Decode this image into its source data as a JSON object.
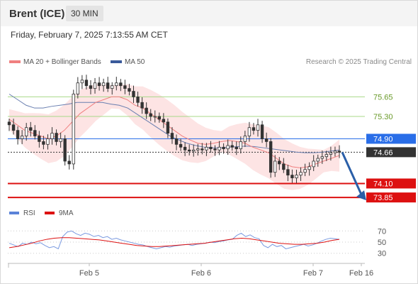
{
  "header": {
    "instrument": "Brent (ICE)",
    "timeframe": "30 MIN",
    "timestamp": "Friday, February 7, 2025 7:13:55 AM CET"
  },
  "chart_data": [
    {
      "type": "candlestick",
      "legend": [
        {
          "label": "MA 20 + Bollinger Bands",
          "color": "#f08080"
        },
        {
          "label": "MA 50",
          "color": "#3a5a9a"
        }
      ],
      "credit": "Research © 2025 Trading Central",
      "y_range": [
        73.75,
        76.1
      ],
      "levels": [
        {
          "label": "75.65",
          "value": 75.65,
          "color": "#a8d888",
          "style": "green"
        },
        {
          "label": "75.30",
          "value": 75.3,
          "color": "#a8d888",
          "style": "green"
        },
        {
          "label": "74.90",
          "value": 74.9,
          "color": "#2a6ee8",
          "style": "blue"
        },
        {
          "label": "74.66",
          "value": 74.66,
          "color": "#333333",
          "style": "dark"
        },
        {
          "label": "74.10",
          "value": 74.1,
          "color": "#dd1111",
          "style": "red"
        },
        {
          "label": "73.85",
          "value": 73.85,
          "color": "#dd1111",
          "style": "red"
        }
      ],
      "close_series": [
        75.15,
        75.05,
        74.9,
        74.95,
        75.1,
        75.05,
        74.95,
        74.85,
        74.8,
        74.9,
        75.0,
        74.85,
        74.9,
        74.5,
        74.45,
        75.7,
        75.9,
        75.95,
        75.85,
        75.8,
        75.9,
        75.85,
        75.9,
        75.8,
        75.85,
        75.9,
        75.85,
        75.8,
        75.75,
        75.65,
        75.55,
        75.45,
        75.35,
        75.3,
        75.3,
        75.25,
        75.2,
        75.0,
        74.9,
        74.8,
        74.75,
        74.7,
        74.68,
        74.7,
        74.72,
        74.7,
        74.75,
        74.72,
        74.7,
        74.75,
        74.72,
        74.78,
        74.75,
        74.72,
        74.85,
        74.95,
        75.1,
        75.05,
        75.15,
        74.9,
        74.85,
        74.3,
        74.5,
        74.45,
        74.35,
        74.25,
        74.2,
        74.25,
        74.3,
        74.35,
        74.4,
        74.5,
        74.55,
        74.58,
        74.62,
        74.65,
        74.68,
        74.66
      ],
      "ma20_series": [
        75.25,
        75.15,
        75.05,
        75.0,
        74.95,
        74.9,
        74.95,
        75.05,
        75.2,
        75.35,
        75.45,
        75.55,
        75.6,
        75.65,
        75.65,
        75.6,
        75.5,
        75.45,
        75.35,
        75.25,
        75.15,
        75.05,
        74.95,
        74.88,
        74.82,
        74.8,
        74.82,
        74.85,
        74.87,
        74.85,
        74.82,
        74.75,
        74.7,
        74.65,
        74.55,
        74.45,
        74.4,
        74.38,
        74.4,
        74.45,
        74.5,
        74.55,
        74.6
      ],
      "ma50_series": [
        75.7,
        75.6,
        75.5,
        75.45,
        75.45,
        75.48,
        75.5,
        75.52,
        75.55,
        75.55,
        75.55,
        75.55,
        75.52,
        75.5,
        75.45,
        75.35,
        75.25,
        75.15,
        75.05,
        74.95,
        74.88,
        74.82,
        74.78,
        74.75,
        74.74,
        74.74,
        74.75,
        74.76,
        74.77,
        74.76,
        74.74,
        74.72,
        74.7,
        74.68,
        74.66,
        74.65,
        74.65,
        74.66,
        74.68,
        74.7
      ],
      "forecast_arrow": {
        "from": 74.66,
        "to": 73.85,
        "color": "#2a5fa8"
      },
      "x_ticks": [
        "Feb 5",
        "Feb 6",
        "Feb 7",
        "Feb 16"
      ]
    },
    {
      "type": "line",
      "legend": [
        {
          "label": "RSI",
          "color": "#5a82d8"
        },
        {
          "label": "9MA",
          "color": "#dd1111"
        }
      ],
      "y_range": [
        22,
        78
      ],
      "y_ticks": [
        "70",
        "50",
        "30"
      ],
      "y_tick_values": [
        70,
        50,
        30
      ],
      "rsi_series": [
        48,
        45,
        42,
        48,
        46,
        50,
        47,
        49,
        44,
        40,
        42,
        38,
        60,
        68,
        70,
        65,
        62,
        66,
        64,
        60,
        62,
        58,
        60,
        55,
        57,
        54,
        52,
        50,
        48,
        46,
        45,
        42,
        40,
        38,
        40,
        42,
        41,
        43,
        44,
        45,
        46,
        44,
        46,
        47,
        48,
        50,
        49,
        51,
        52,
        54,
        55,
        62,
        66,
        60,
        63,
        58,
        56,
        44,
        40,
        46,
        42,
        44,
        38,
        40,
        42,
        44,
        46,
        43,
        45,
        48,
        52,
        55,
        57,
        56,
        55
      ],
      "ma9_series": [
        40,
        42,
        45,
        48,
        52,
        55,
        57,
        58,
        58,
        57,
        56,
        55,
        54,
        52,
        50,
        48,
        46,
        44,
        43,
        42,
        42,
        43,
        44,
        45,
        46,
        47,
        48,
        50,
        52,
        54,
        56,
        57,
        56,
        54,
        52,
        50,
        48,
        47,
        46,
        46,
        47,
        48,
        50,
        53,
        55
      ]
    }
  ]
}
